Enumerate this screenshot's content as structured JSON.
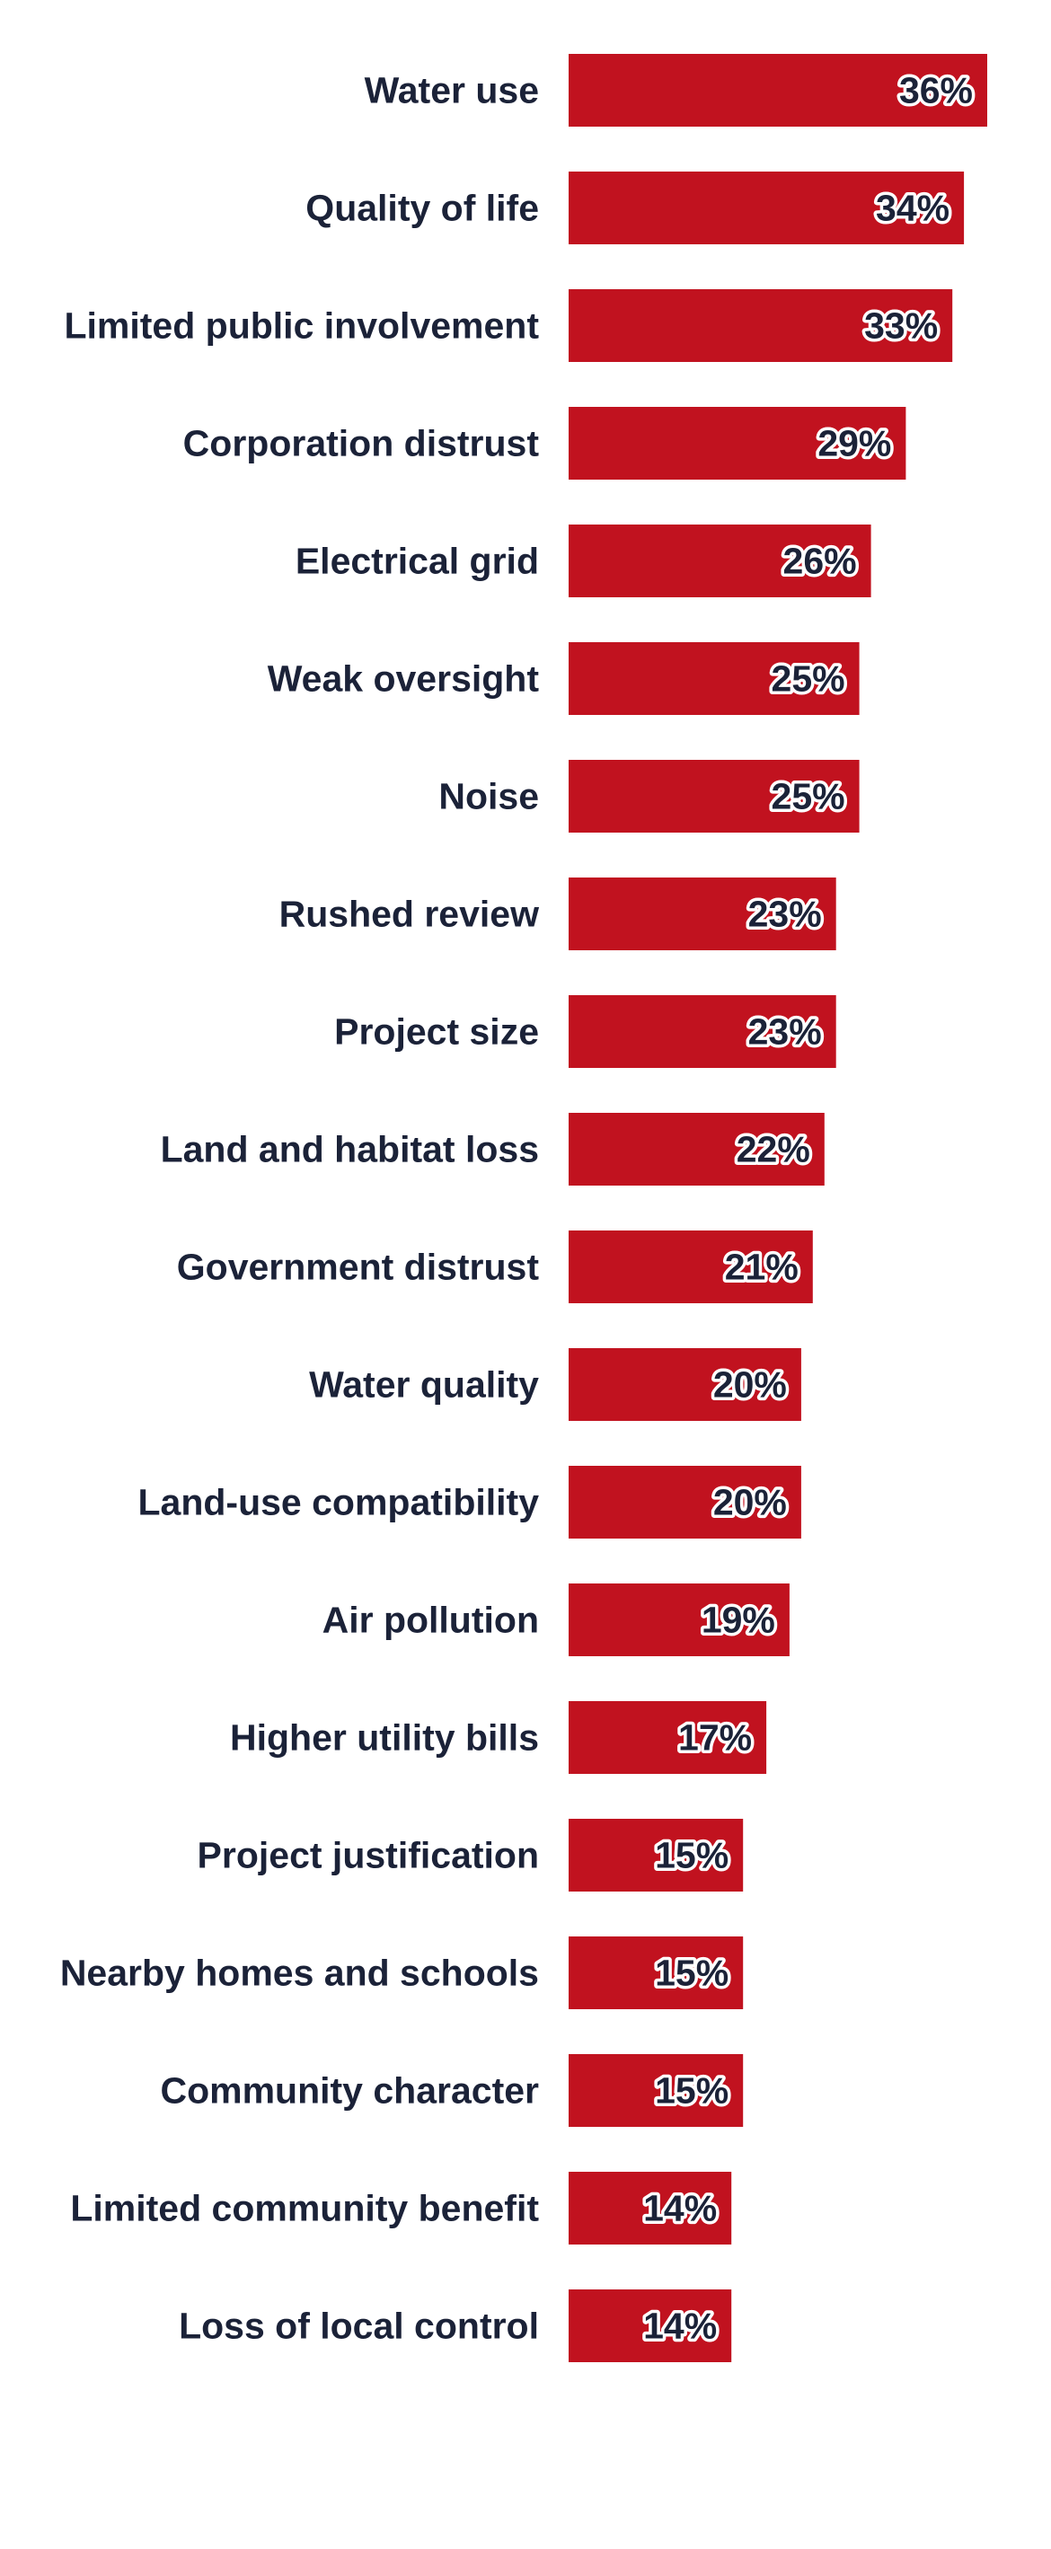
{
  "chart_data": {
    "type": "bar",
    "orientation": "horizontal",
    "title": "",
    "xlabel": "",
    "ylabel": "",
    "unit": "%",
    "xlim": [
      0,
      36
    ],
    "grid": false,
    "legend": "none",
    "bar_color": "#c1121f",
    "label_color": "#1b2238",
    "categories": [
      "Water use",
      "Quality of life",
      "Limited public involvement",
      "Corporation distrust",
      "Electrical grid",
      "Weak oversight",
      "Noise",
      "Rushed review",
      "Project size",
      "Land and habitat loss",
      "Government distrust",
      "Water quality",
      "Land-use compatibility",
      "Air pollution",
      "Higher utility bills",
      "Project justification",
      "Nearby homes and schools",
      "Community character",
      "Limited community benefit",
      "Loss of local control"
    ],
    "values": [
      36,
      34,
      33,
      29,
      26,
      25,
      25,
      23,
      23,
      22,
      21,
      20,
      20,
      19,
      17,
      15,
      15,
      15,
      14,
      14
    ],
    "value_labels": [
      "36%",
      "34%",
      "33%",
      "29%",
      "26%",
      "25%",
      "25%",
      "23%",
      "23%",
      "22%",
      "21%",
      "20%",
      "20%",
      "19%",
      "17%",
      "15%",
      "15%",
      "15%",
      "14%",
      "14%"
    ]
  }
}
